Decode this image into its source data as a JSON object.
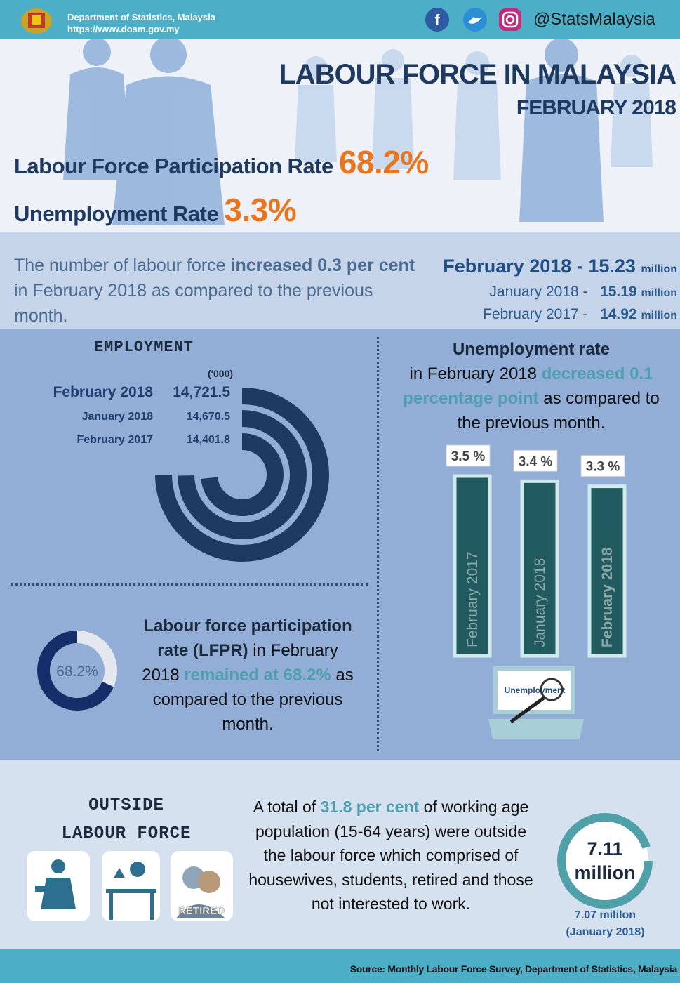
{
  "header": {
    "org": "Department of Statistics, Malaysia",
    "url": "https://www.dosm.gov.my",
    "social": "@StatsMalaysia"
  },
  "title": {
    "main": "LABOUR FORCE IN MALAYSIA",
    "sub": "FEBRUARY 2018"
  },
  "headline": [
    {
      "label": "Labour Force Participation Rate",
      "value": "68.2%"
    },
    {
      "label": "Unemployment Rate",
      "value": "3.3%"
    }
  ],
  "labour_force": {
    "text_parts": [
      "The number of labour force ",
      "increased 0.3 per cent",
      " in February 2018 as compared to the previous month."
    ],
    "rows": [
      {
        "period": "February 2018 -",
        "value": "15.23",
        "unit": "million"
      },
      {
        "period": "January 2018 -",
        "value": "15.19",
        "unit": "million"
      },
      {
        "period": "February 2017 -",
        "value": "14.92",
        "unit": "million"
      }
    ]
  },
  "employment": {
    "title": "EMPLOYMENT",
    "unit": "('000)",
    "rows": [
      {
        "period": "February 2018",
        "value": 14721.5,
        "label": "14,721.5"
      },
      {
        "period": "January 2018",
        "value": 14670.5,
        "label": "14,670.5"
      },
      {
        "period": "February 2017",
        "value": 14401.8,
        "label": "14,401.8"
      }
    ]
  },
  "unemployment": {
    "text_parts": [
      "Unemployment rate",
      "in February 2018 ",
      "decreased 0.1 percentage point",
      " as compared to the previous month."
    ],
    "bars": [
      {
        "period": "February 2017",
        "value": 3.5,
        "label": "3.5 %"
      },
      {
        "period": "January 2018",
        "value": 3.4,
        "label": "3.4 %"
      },
      {
        "period": "February 2018",
        "value": 3.3,
        "label": "3.3 %"
      }
    ],
    "icon_label": "Unemployment"
  },
  "lfpr": {
    "value": 68.2,
    "label": "68.2%",
    "text_parts": [
      "Labour force participation rate (LFPR)",
      " in February 2018 ",
      "remained at 68.2%",
      " as compared to the previous month."
    ]
  },
  "outside": {
    "title": [
      "OUTSIDE",
      "LABOUR FORCE"
    ],
    "icon_label": "RETIRED",
    "text_parts": [
      "A total of ",
      "31.8 per cent",
      " of working age population (15-64 years) were outside the labour force which comprised of housewives, students, retired and those not interested to work."
    ],
    "value": "7.11",
    "unit": "million",
    "previous": "7.07 mililon",
    "previous_period": "(January 2018)"
  },
  "footer": {
    "source": "Source: Monthly Labour Force Survey, Department of Statistics, Malaysia"
  }
}
